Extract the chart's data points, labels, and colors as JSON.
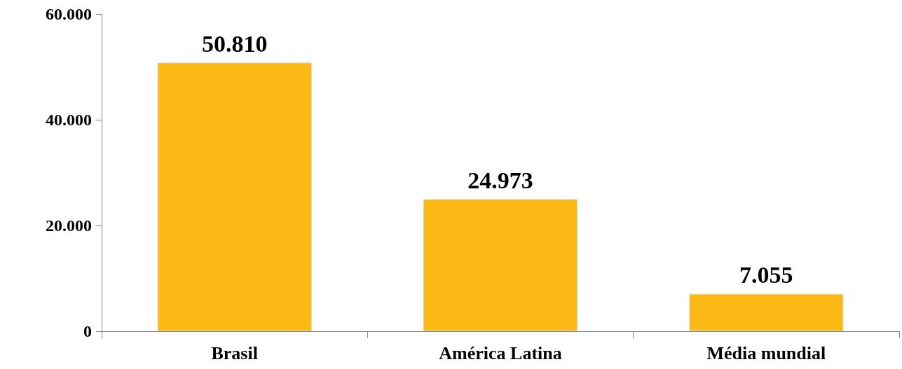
{
  "chart_data": {
    "type": "bar",
    "categories": [
      "Brasil",
      "América Latina",
      "Média mundial"
    ],
    "values": [
      50810,
      24973,
      7055
    ],
    "value_labels": [
      "50.810",
      "24.973",
      "7.055"
    ],
    "color": "#fcb814",
    "ylim": [
      0,
      60000
    ],
    "yticks": [
      {
        "value": 0,
        "label": "0"
      },
      {
        "value": 20000,
        "label": "20.000"
      },
      {
        "value": 40000,
        "label": "40.000"
      },
      {
        "value": 60000,
        "label": "60.000"
      }
    ],
    "grid": false
  }
}
